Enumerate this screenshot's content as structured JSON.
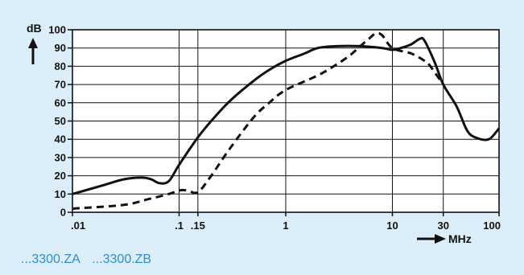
{
  "chart_data": {
    "type": "line",
    "title": "",
    "ylabel": "dB",
    "xlabel": "MHz",
    "xscale": "log",
    "xlim": [
      0.01,
      100
    ],
    "ylim": [
      0,
      100
    ],
    "grid": true,
    "x_ticks": [
      {
        "value": 0.01,
        "label": ".01"
      },
      {
        "value": 0.1,
        "label": ".1"
      },
      {
        "value": 0.15,
        "label": ".15"
      },
      {
        "value": 1,
        "label": "1"
      },
      {
        "value": 10,
        "label": "10"
      },
      {
        "value": 30,
        "label": "30"
      },
      {
        "value": 100,
        "label": "100"
      }
    ],
    "y_ticks": [
      0,
      10,
      20,
      30,
      40,
      50,
      60,
      70,
      80,
      90,
      100
    ],
    "series": [
      {
        "style": "solid",
        "x": [
          0.01,
          0.02,
          0.03,
          0.045,
          0.055,
          0.065,
          0.08,
          0.1,
          0.15,
          0.2,
          0.3,
          0.5,
          0.7,
          1,
          1.5,
          2,
          3,
          5,
          8,
          10,
          12,
          15,
          18,
          20,
          25,
          30,
          40,
          50,
          60,
          80,
          100
        ],
        "y": [
          10,
          15,
          18,
          19,
          18,
          16,
          17,
          26,
          41,
          50,
          61,
          72,
          78,
          83,
          87,
          90,
          91,
          91,
          90,
          89,
          90,
          92,
          95,
          94,
          82,
          70,
          58,
          45,
          41,
          40,
          46
        ]
      },
      {
        "style": "dashed",
        "x": [
          0.01,
          0.03,
          0.05,
          0.08,
          0.1,
          0.12,
          0.15,
          0.2,
          0.3,
          0.5,
          0.7,
          1,
          2,
          3,
          4,
          5,
          6,
          7,
          8,
          10,
          15,
          20,
          22,
          30
        ],
        "y": [
          2,
          4,
          7,
          10,
          12,
          12,
          11,
          20,
          35,
          52,
          60,
          67,
          75,
          81,
          86,
          91,
          95,
          98,
          97,
          90,
          87,
          83,
          81,
          70
        ]
      }
    ]
  },
  "legend": {
    "items": [
      "...3300.ZA",
      "...3300.ZB"
    ]
  }
}
